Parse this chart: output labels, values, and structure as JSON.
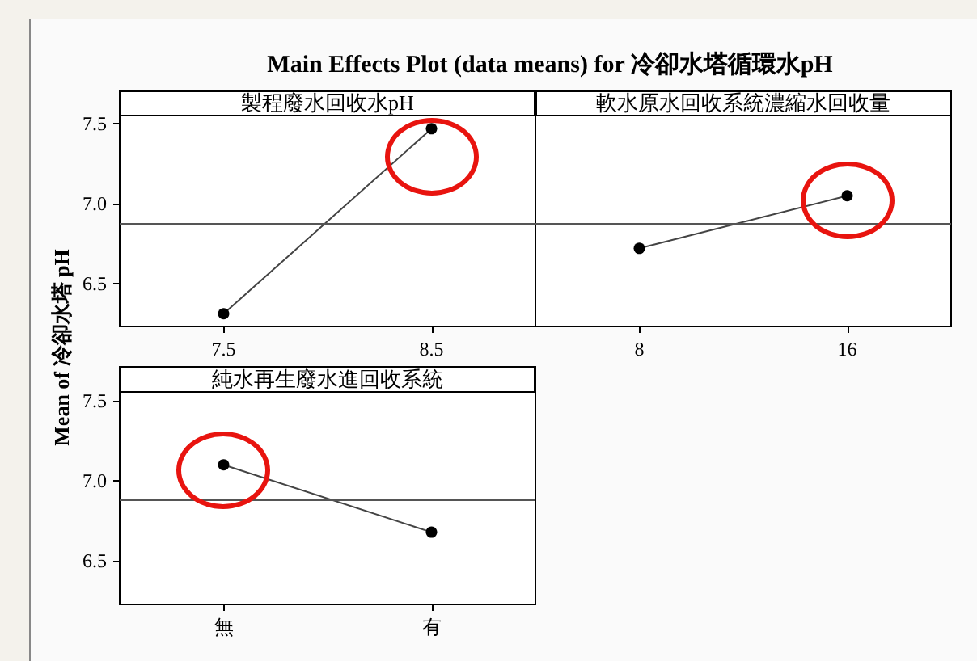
{
  "chart_data": [
    {
      "type": "line",
      "title": "Main Effects Plot (data means) for 冷卻水塔循環水pH",
      "ylabel": "Mean of 冷卻水塔 pH",
      "xlabel": "製程廢水回收水pH",
      "categories": [
        "7.5",
        "8.5"
      ],
      "values": [
        6.31,
        7.47
      ],
      "color": "#000000",
      "ylim": [
        6.23,
        7.71
      ],
      "yticks": [
        {
          "value": 6.5,
          "label": "6.5"
        },
        {
          "value": 7.0,
          "label": "7.0"
        },
        {
          "value": 7.5,
          "label": "7.5"
        }
      ],
      "ref_lines": [
        {
          "axis": "y",
          "value": 6.88,
          "color": "#555555"
        }
      ],
      "marker": "circle",
      "line_style": "solid",
      "grid": false
    },
    {
      "type": "line",
      "xlabel": "軟水原水回收系統濃縮水回收量",
      "categories": [
        "8",
        "16"
      ],
      "values": [
        6.72,
        7.05
      ],
      "color": "#000000",
      "ylim": [
        6.23,
        7.71
      ],
      "ref_lines": [
        {
          "axis": "y",
          "value": 6.88,
          "color": "#555555"
        }
      ],
      "marker": "circle",
      "line_style": "solid",
      "grid": false,
      "tick_labels": "x"
    },
    {
      "type": "line",
      "xlabel": "純水再生廢水進回收系統",
      "categories": [
        "無",
        "有"
      ],
      "values": [
        7.1,
        6.68
      ],
      "color": "#000000",
      "ylim": [
        6.23,
        7.71
      ],
      "yticks": [
        {
          "value": 6.5,
          "label": "6.5"
        },
        {
          "value": 7.0,
          "label": "7.0"
        },
        {
          "value": 7.5,
          "label": "7.5"
        }
      ],
      "ref_lines": [
        {
          "axis": "y",
          "value": 6.88,
          "color": "#555555"
        }
      ],
      "marker": "circle",
      "line_style": "solid",
      "grid": false
    }
  ]
}
